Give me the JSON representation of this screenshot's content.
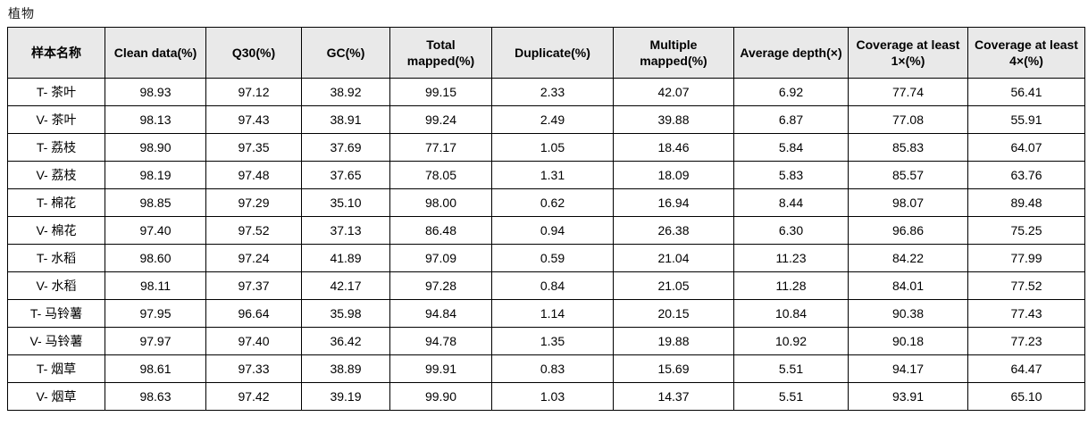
{
  "title": "植物",
  "colors": {
    "header_bg": "#e9e9e9",
    "border": "#000000",
    "text": "#000000",
    "page_bg": "#ffffff"
  },
  "table": {
    "columns": [
      "样本名称",
      "Clean data(%)",
      "Q30(%)",
      "GC(%)",
      "Total mapped(%)",
      "Duplicate(%)",
      "Multiple mapped(%)",
      "Average depth(×)",
      "Coverage at least 1×(%)",
      "Coverage at least 4×(%)"
    ],
    "rows": [
      [
        "T- 茶叶",
        "98.93",
        "97.12",
        "38.92",
        "99.15",
        "2.33",
        "42.07",
        "6.92",
        "77.74",
        "56.41"
      ],
      [
        "V- 茶叶",
        "98.13",
        "97.43",
        "38.91",
        "99.24",
        "2.49",
        "39.88",
        "6.87",
        "77.08",
        "55.91"
      ],
      [
        "T- 荔枝",
        "98.90",
        "97.35",
        "37.69",
        "77.17",
        "1.05",
        "18.46",
        "5.84",
        "85.83",
        "64.07"
      ],
      [
        "V- 荔枝",
        "98.19",
        "97.48",
        "37.65",
        "78.05",
        "1.31",
        "18.09",
        "5.83",
        "85.57",
        "63.76"
      ],
      [
        "T- 棉花",
        "98.85",
        "97.29",
        "35.10",
        "98.00",
        "0.62",
        "16.94",
        "8.44",
        "98.07",
        "89.48"
      ],
      [
        "V- 棉花",
        "97.40",
        "97.52",
        "37.13",
        "86.48",
        "0.94",
        "26.38",
        "6.30",
        "96.86",
        "75.25"
      ],
      [
        "T- 水稻",
        "98.60",
        "97.24",
        "41.89",
        "97.09",
        "0.59",
        "21.04",
        "11.23",
        "84.22",
        "77.99"
      ],
      [
        "V- 水稻",
        "98.11",
        "97.37",
        "42.17",
        "97.28",
        "0.84",
        "21.05",
        "11.28",
        "84.01",
        "77.52"
      ],
      [
        "T- 马铃薯",
        "97.95",
        "96.64",
        "35.98",
        "94.84",
        "1.14",
        "20.15",
        "10.84",
        "90.38",
        "77.43"
      ],
      [
        "V- 马铃薯",
        "97.97",
        "97.40",
        "36.42",
        "94.78",
        "1.35",
        "19.88",
        "10.92",
        "90.18",
        "77.23"
      ],
      [
        "T- 烟草",
        "98.61",
        "97.33",
        "38.89",
        "99.91",
        "0.83",
        "15.69",
        "5.51",
        "94.17",
        "64.47"
      ],
      [
        "V- 烟草",
        "98.63",
        "97.42",
        "39.19",
        "99.90",
        "1.03",
        "14.37",
        "5.51",
        "93.91",
        "65.10"
      ]
    ]
  }
}
